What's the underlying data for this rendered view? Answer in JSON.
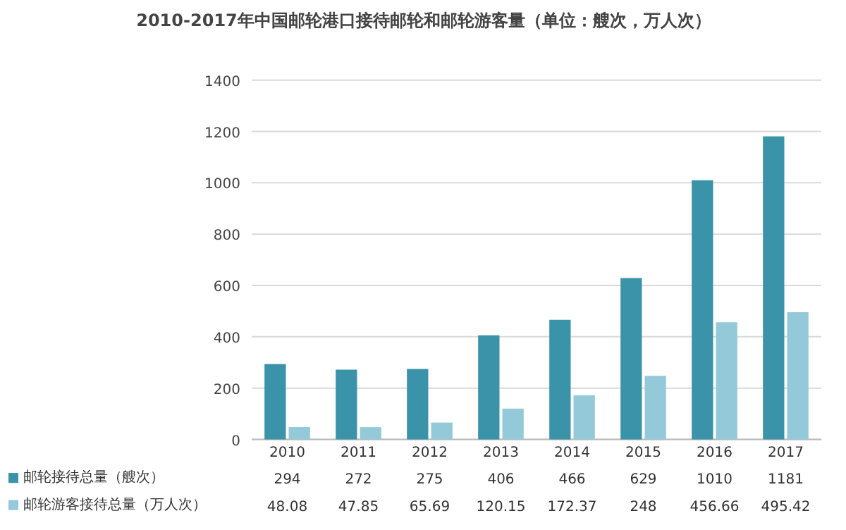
{
  "chart_data": {
    "type": "bar",
    "title": "2010-2017年中国邮轮港口接待邮轮和邮轮游客量（单位：艘次，万人次）",
    "categories": [
      "2010",
      "2011",
      "2012",
      "2013",
      "2014",
      "2015",
      "2016",
      "2017"
    ],
    "series": [
      {
        "name": "邮轮接待总量（艘次）",
        "color": "#3a93a8",
        "values": [
          294,
          272,
          275,
          406,
          466,
          629,
          1010,
          1181
        ]
      },
      {
        "name": "邮轮游客接待总量（万人次）",
        "color": "#93c9d8",
        "values": [
          48.08,
          47.85,
          65.69,
          120.15,
          172.37,
          248,
          456.66,
          495.42
        ]
      }
    ],
    "ylim": [
      0,
      1400
    ],
    "yticks": [
      0,
      200,
      400,
      600,
      800,
      1000,
      1200,
      1400
    ],
    "grid": "y",
    "legend": "bottom",
    "data_labels": true
  }
}
